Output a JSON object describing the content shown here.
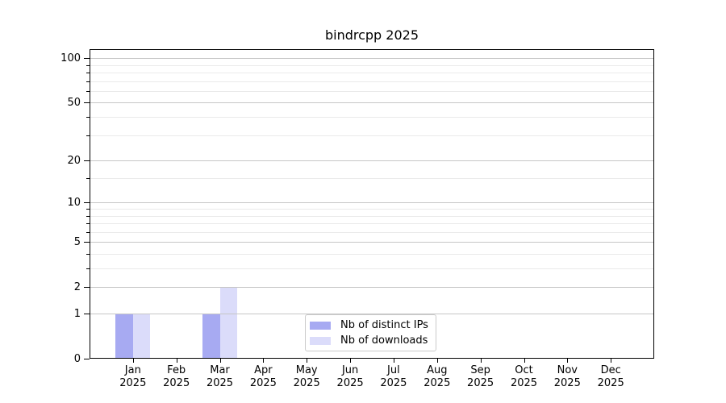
{
  "chart_data": {
    "type": "bar",
    "title": "bindrcpp 2025",
    "categories": [
      "Jan 2025",
      "Feb 2025",
      "Mar 2025",
      "Apr 2025",
      "May 2025",
      "Jun 2025",
      "Jul 2025",
      "Aug 2025",
      "Sep 2025",
      "Oct 2025",
      "Nov 2025",
      "Dec 2025"
    ],
    "series": [
      {
        "name": "Nb of distinct IPs",
        "color": "#a7aaf2",
        "values": [
          1,
          0,
          1,
          0,
          0,
          0,
          0,
          0,
          0,
          0,
          0,
          0
        ]
      },
      {
        "name": "Nb of downloads",
        "color": "#dbdcfa",
        "values": [
          1,
          0,
          2,
          0,
          0,
          0,
          0,
          0,
          0,
          0,
          0,
          0
        ]
      }
    ],
    "y_axis": {
      "scale": "log10(1+x)",
      "major_ticks": [
        0,
        1,
        2,
        5,
        10,
        20,
        50,
        100
      ],
      "minor_ticks": [
        3,
        4,
        6,
        7,
        8,
        9,
        15,
        30,
        40,
        60,
        70,
        80,
        90
      ],
      "ylim": [
        0,
        116
      ]
    },
    "xlabel": "",
    "ylabel": "",
    "grid": true,
    "legend_position": "lower center inside plot"
  },
  "colors": {
    "background": "#ffffff",
    "axis": "#000000",
    "major_grid": "#c6c6c6",
    "minor_grid": "#eaeaea",
    "legend_border": "#cbcbcb",
    "bar_distinct_ips": "#a7aaf2",
    "bar_downloads": "#dbdcfa"
  }
}
